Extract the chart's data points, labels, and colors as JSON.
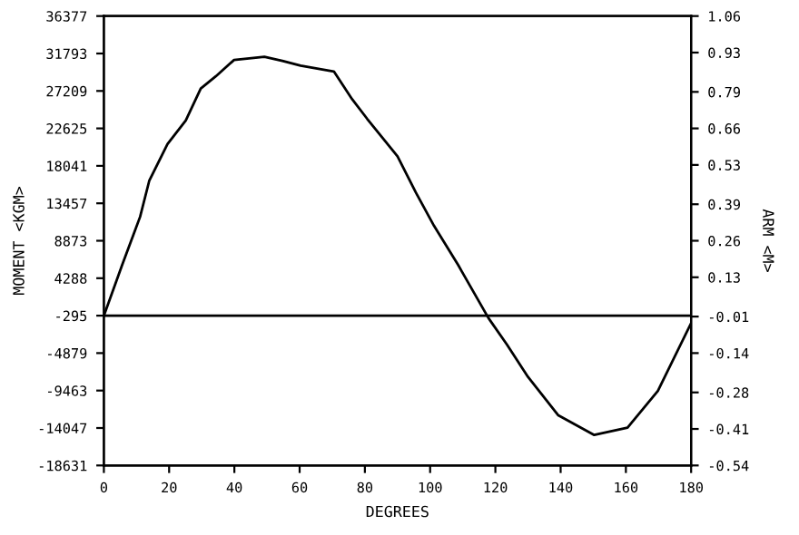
{
  "chart_data": {
    "type": "line",
    "xlabel": "DEGREES",
    "ylabel": "MOMENT <KGM>",
    "y2label": "ARM <M>",
    "x": [
      0,
      5.6,
      11.1,
      13.9,
      19.5,
      25.1,
      29.7,
      34.3,
      39.9,
      49.2,
      54.7,
      60.3,
      70.5,
      76.1,
      80.7,
      90,
      95.6,
      101.2,
      108.6,
      117.9,
      123.5,
      130,
      139.3,
      150.3,
      160.5,
      169.8,
      180
    ],
    "series": [
      {
        "color": "#000000",
        "values": [
          -300,
          5900,
          11800,
          16200,
          20700,
          23600,
          27500,
          29000,
          31000,
          31400,
          30900,
          30300,
          29600,
          26200,
          23800,
          19200,
          14800,
          10700,
          5900,
          -600,
          -3800,
          -7800,
          -12500,
          -14900,
          -14000,
          -9500,
          -1200
        ]
      }
    ],
    "xlim": [
      0,
      180
    ],
    "xticks": [
      0,
      20,
      40,
      60,
      80,
      100,
      120,
      140,
      160,
      180
    ],
    "ylim": [
      -18631,
      36377
    ],
    "yticks": [
      36377,
      31793,
      27209,
      22625,
      18041,
      13457,
      8873,
      4288,
      -295,
      -4879,
      -9463,
      -14047,
      -18631
    ],
    "y2lim": [
      -0.54,
      1.06
    ],
    "y2ticks": [
      1.06,
      0.93,
      0.79,
      0.66,
      0.53,
      0.39,
      0.26,
      0.13,
      -0.01,
      -0.14,
      -0.28,
      -0.41,
      -0.54
    ],
    "ref_lines": [
      {
        "axis": "y",
        "value": -295,
        "color": "#000000"
      }
    ],
    "grid": false,
    "marker": "none",
    "line_style": "solid"
  }
}
